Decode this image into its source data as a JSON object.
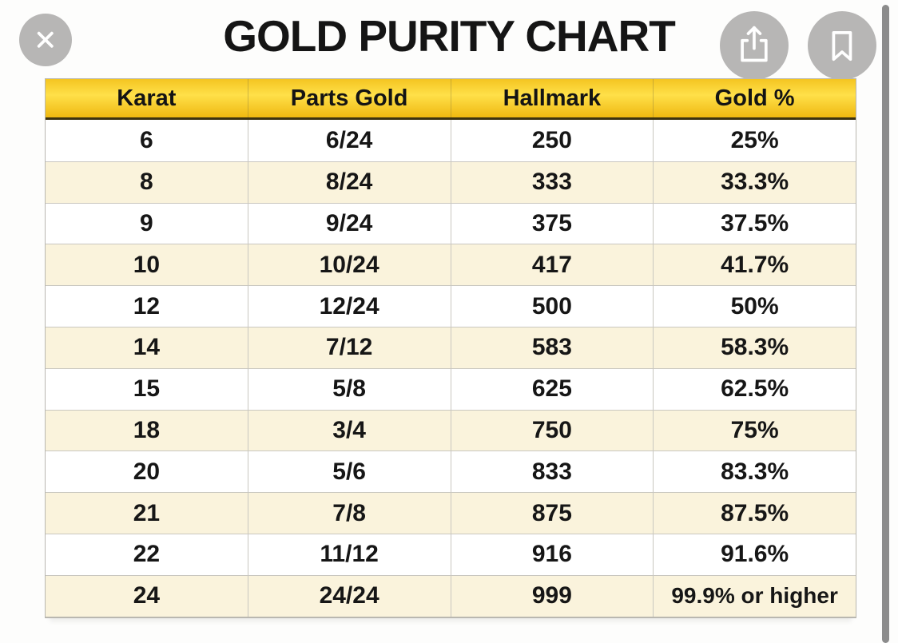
{
  "title": "GOLD PURITY CHART",
  "viewer": {
    "close_icon": "close-icon",
    "share_icon": "share-icon",
    "bookmark_icon": "bookmark-icon",
    "scrollbar": "scrollbar-thumb"
  },
  "table": {
    "headers": [
      "Karat",
      "Parts Gold",
      "Hallmark",
      "Gold %"
    ],
    "rows": [
      [
        "6",
        "6/24",
        "250",
        "25%"
      ],
      [
        "8",
        "8/24",
        "333",
        "33.3%"
      ],
      [
        "9",
        "9/24",
        "375",
        "37.5%"
      ],
      [
        "10",
        "10/24",
        "417",
        "41.7%"
      ],
      [
        "12",
        "12/24",
        "500",
        "50%"
      ],
      [
        "14",
        "7/12",
        "583",
        "58.3%"
      ],
      [
        "15",
        "5/8",
        "625",
        "62.5%"
      ],
      [
        "18",
        "3/4",
        "750",
        "75%"
      ],
      [
        "20",
        "5/6",
        "833",
        "83.3%"
      ],
      [
        "21",
        "7/8",
        "875",
        "87.5%"
      ],
      [
        "22",
        "11/12",
        "916",
        "91.6%"
      ],
      [
        "24",
        "24/24",
        "999",
        "99.9% or higher"
      ]
    ]
  },
  "chart_data": {
    "type": "table",
    "title": "GOLD PURITY CHART",
    "columns": [
      "Karat",
      "Parts Gold",
      "Hallmark",
      "Gold %"
    ],
    "rows": [
      [
        "6",
        "6/24",
        "250",
        "25%"
      ],
      [
        "8",
        "8/24",
        "333",
        "33.3%"
      ],
      [
        "9",
        "9/24",
        "375",
        "37.5%"
      ],
      [
        "10",
        "10/24",
        "417",
        "41.7%"
      ],
      [
        "12",
        "12/24",
        "500",
        "50%"
      ],
      [
        "14",
        "7/12",
        "583",
        "58.3%"
      ],
      [
        "15",
        "5/8",
        "625",
        "62.5%"
      ],
      [
        "18",
        "3/4",
        "750",
        "75%"
      ],
      [
        "20",
        "5/6",
        "833",
        "83.3%"
      ],
      [
        "21",
        "7/8",
        "875",
        "87.5%"
      ],
      [
        "22",
        "11/12",
        "916",
        "91.6%"
      ],
      [
        "24",
        "24/24",
        "999",
        "99.9% or higher"
      ]
    ]
  },
  "colors": {
    "page_bg": "#fdfdfc",
    "title_color": "#151515",
    "text": "#161616",
    "header_top": "#f4c521",
    "header_mid": "#ffe049",
    "header_bottom": "#efb810",
    "header_border": "#3c320f",
    "row_base": "#ffffff",
    "row_alt": "#faf3dc",
    "grid_line": "#c9c7c0",
    "outer_border": "#b9b7b0",
    "overlay_button": "#b7b6b5",
    "icon": "#ffffff",
    "scrollbar": "#8c8c8c"
  }
}
